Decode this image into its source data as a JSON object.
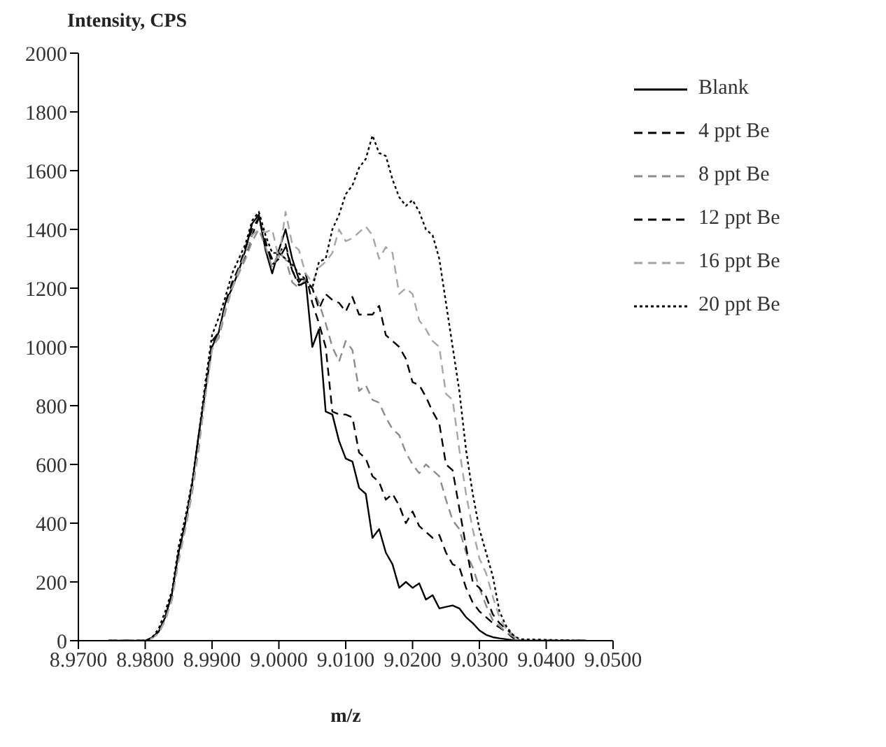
{
  "chart_data": {
    "type": "line",
    "ylabel": "Intensity, CPS",
    "xlabel": "m/z",
    "x": [
      8.9745,
      8.98,
      8.981,
      8.982,
      8.983,
      8.984,
      8.985,
      8.986,
      8.987,
      8.988,
      8.989,
      8.99,
      8.991,
      8.992,
      8.993,
      8.994,
      8.995,
      8.996,
      8.997,
      8.998,
      8.999,
      9.0,
      9.001,
      9.002,
      9.003,
      9.004,
      9.005,
      9.006,
      9.007,
      9.008,
      9.009,
      9.01,
      9.011,
      9.012,
      9.013,
      9.014,
      9.015,
      9.016,
      9.017,
      9.018,
      9.019,
      9.02,
      9.021,
      9.022,
      9.023,
      9.024,
      9.025,
      9.026,
      9.027,
      9.028,
      9.029,
      9.03,
      9.031,
      9.032,
      9.033,
      9.034,
      9.035,
      9.036,
      9.046
    ],
    "series": [
      {
        "name": "Blank",
        "color": "#000000",
        "line_style": "solid",
        "values": [
          0,
          0,
          10,
          30,
          80,
          160,
          300,
          400,
          530,
          700,
          850,
          1000,
          1050,
          1150,
          1200,
          1260,
          1330,
          1420,
          1450,
          1330,
          1250,
          1330,
          1400,
          1300,
          1230,
          1230,
          1000,
          1060,
          780,
          770,
          680,
          620,
          610,
          520,
          500,
          350,
          380,
          300,
          260,
          180,
          200,
          180,
          195,
          140,
          155,
          110,
          115,
          120,
          110,
          80,
          60,
          35,
          20,
          12,
          8,
          5,
          2,
          0,
          0
        ]
      },
      {
        "name": "4 ppt Be",
        "color": "#000000",
        "line_style": "dashed",
        "values": [
          0,
          0,
          10,
          30,
          80,
          150,
          290,
          400,
          520,
          690,
          860,
          1010,
          1040,
          1140,
          1210,
          1270,
          1310,
          1380,
          1440,
          1360,
          1280,
          1300,
          1340,
          1260,
          1220,
          1250,
          1150,
          1080,
          1000,
          780,
          770,
          770,
          760,
          640,
          620,
          560,
          540,
          480,
          500,
          460,
          400,
          440,
          390,
          370,
          350,
          360,
          300,
          260,
          250,
          180,
          130,
          100,
          80,
          60,
          45,
          30,
          10,
          0,
          0
        ]
      },
      {
        "name": "8 ppt Be",
        "color": "#8c8c8c",
        "line_style": "dashed",
        "values": [
          0,
          0,
          8,
          25,
          70,
          140,
          280,
          380,
          500,
          650,
          850,
          1000,
          1030,
          1120,
          1200,
          1250,
          1300,
          1360,
          1400,
          1340,
          1270,
          1320,
          1300,
          1220,
          1200,
          1230,
          1200,
          1150,
          1080,
          1000,
          950,
          1020,
          990,
          850,
          870,
          820,
          810,
          760,
          720,
          700,
          640,
          600,
          570,
          600,
          580,
          560,
          480,
          410,
          380,
          300,
          250,
          180,
          120,
          70,
          50,
          30,
          15,
          0,
          0
        ]
      },
      {
        "name": "12 ppt Be",
        "color": "#000000",
        "line_style": "dashed",
        "values": [
          0,
          0,
          10,
          30,
          80,
          160,
          300,
          400,
          520,
          680,
          850,
          1020,
          1050,
          1150,
          1220,
          1270,
          1340,
          1400,
          1440,
          1350,
          1300,
          1320,
          1350,
          1260,
          1210,
          1220,
          1200,
          1130,
          1180,
          1160,
          1150,
          1120,
          1170,
          1110,
          1110,
          1110,
          1140,
          1040,
          1020,
          1000,
          960,
          880,
          870,
          830,
          780,
          740,
          600,
          580,
          450,
          320,
          200,
          180,
          150,
          90,
          60,
          40,
          20,
          0,
          0
        ]
      },
      {
        "name": "16 ppt Be",
        "color": "#a6a6a6",
        "line_style": "dashed",
        "values": [
          0,
          0,
          8,
          25,
          70,
          140,
          270,
          380,
          510,
          660,
          830,
          990,
          1040,
          1130,
          1200,
          1260,
          1320,
          1380,
          1400,
          1390,
          1400,
          1300,
          1460,
          1350,
          1330,
          1250,
          1220,
          1270,
          1290,
          1320,
          1400,
          1360,
          1370,
          1390,
          1410,
          1380,
          1300,
          1340,
          1320,
          1180,
          1200,
          1180,
          1090,
          1060,
          1020,
          1000,
          840,
          820,
          650,
          500,
          380,
          280,
          230,
          150,
          80,
          40,
          20,
          0,
          0
        ]
      },
      {
        "name": "20 ppt Be",
        "color": "#000000",
        "line_style": "dotted",
        "values": [
          0,
          0,
          10,
          40,
          100,
          170,
          320,
          420,
          540,
          700,
          880,
          1040,
          1100,
          1170,
          1250,
          1300,
          1350,
          1430,
          1460,
          1380,
          1320,
          1320,
          1300,
          1280,
          1250,
          1230,
          1200,
          1290,
          1300,
          1400,
          1450,
          1520,
          1550,
          1610,
          1640,
          1720,
          1660,
          1650,
          1570,
          1510,
          1480,
          1500,
          1460,
          1400,
          1380,
          1300,
          1150,
          1000,
          850,
          650,
          500,
          380,
          300,
          220,
          100,
          50,
          20,
          5,
          0
        ]
      }
    ],
    "xlim": [
      8.97,
      9.05
    ],
    "xticks": [
      {
        "value": 8.97,
        "label": "8.9700"
      },
      {
        "value": 8.98,
        "label": "8.9800"
      },
      {
        "value": 8.99,
        "label": "8.9900"
      },
      {
        "value": 9.0,
        "label": "9.0000"
      },
      {
        "value": 9.01,
        "label": "9.0100"
      },
      {
        "value": 9.02,
        "label": "9.0200"
      },
      {
        "value": 9.03,
        "label": "9.0300"
      },
      {
        "value": 9.04,
        "label": "9.0400"
      },
      {
        "value": 9.05,
        "label": "9.0500"
      }
    ],
    "ylim": [
      0,
      2000
    ],
    "yticks": [
      0,
      200,
      400,
      600,
      800,
      1000,
      1200,
      1400,
      1600,
      1800,
      2000
    ],
    "grid": false,
    "legend": "top right",
    "marker": "none"
  }
}
